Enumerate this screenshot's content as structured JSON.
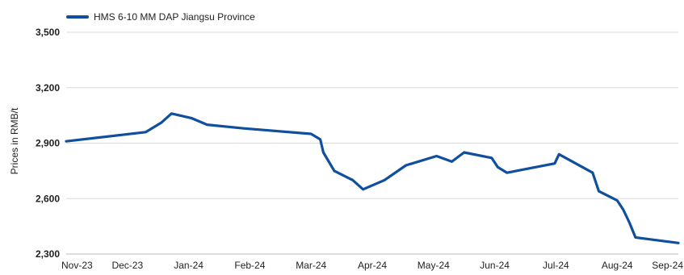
{
  "chart_data": {
    "type": "line",
    "title": "",
    "xlabel": "",
    "ylabel": "Prices in RMB/t",
    "ylim": [
      2300,
      3500
    ],
    "yticks": [
      2300,
      2600,
      2900,
      3200,
      3500
    ],
    "ytick_labels": [
      "2,300",
      "2,600",
      "2,900",
      "3,200",
      "3,500"
    ],
    "grid": true,
    "legend_position": "top-left",
    "categories": [
      "Nov-23",
      "Dec-23",
      "Jan-24",
      "Feb-24",
      "Mar-24",
      "Apr-24",
      "May-24",
      "Jun-24",
      "Jul-24",
      "Aug-24",
      "Sep-24"
    ],
    "series": [
      {
        "name": "HMS 6-10 MM DAP Jiangsu Province",
        "color": "#0f4f9e",
        "points": [
          [
            0.0,
            2910
          ],
          [
            1.3,
            2960
          ],
          [
            1.55,
            3010
          ],
          [
            1.72,
            3060
          ],
          [
            2.05,
            3035
          ],
          [
            2.3,
            3000
          ],
          [
            2.9,
            2980
          ],
          [
            4.0,
            2950
          ],
          [
            4.15,
            2920
          ],
          [
            4.2,
            2850
          ],
          [
            4.38,
            2750
          ],
          [
            4.68,
            2700
          ],
          [
            4.85,
            2650
          ],
          [
            5.2,
            2700
          ],
          [
            5.55,
            2780
          ],
          [
            6.05,
            2830
          ],
          [
            6.3,
            2800
          ],
          [
            6.5,
            2850
          ],
          [
            6.95,
            2820
          ],
          [
            7.05,
            2770
          ],
          [
            7.2,
            2740
          ],
          [
            7.98,
            2790
          ],
          [
            8.05,
            2840
          ],
          [
            8.6,
            2740
          ],
          [
            8.7,
            2640
          ],
          [
            9.0,
            2590
          ],
          [
            9.1,
            2540
          ],
          [
            9.2,
            2470
          ],
          [
            9.3,
            2390
          ],
          [
            10.0,
            2360
          ]
        ]
      }
    ]
  }
}
